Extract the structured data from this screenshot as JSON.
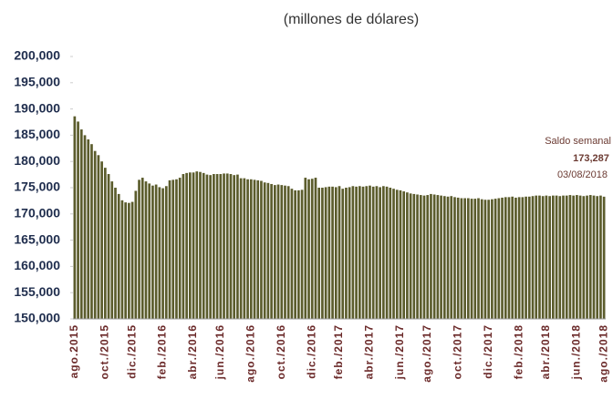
{
  "chart_data": {
    "type": "bar",
    "title": "(millones de dólares)",
    "color": "#5b5c2c",
    "categories": [
      "ago.2015",
      null,
      null,
      null,
      null,
      null,
      null,
      null,
      null,
      "oct./2015",
      null,
      null,
      null,
      null,
      null,
      null,
      null,
      "dic./2015",
      null,
      null,
      null,
      null,
      null,
      null,
      null,
      null,
      "feb./2016",
      null,
      null,
      null,
      null,
      null,
      null,
      null,
      null,
      "abr./2016",
      null,
      null,
      null,
      null,
      null,
      null,
      null,
      "jun./2016",
      null,
      null,
      null,
      null,
      null,
      null,
      null,
      null,
      "ago./2016",
      null,
      null,
      null,
      null,
      null,
      null,
      null,
      null,
      "oct./2016",
      null,
      null,
      null,
      null,
      null,
      null,
      null,
      null,
      "dic./2016",
      null,
      null,
      null,
      null,
      null,
      null,
      null,
      "feb./2017",
      null,
      null,
      null,
      null,
      null,
      null,
      null,
      null,
      "abr./2017",
      null,
      null,
      null,
      null,
      null,
      null,
      null,
      null,
      "jun./2017",
      null,
      null,
      null,
      null,
      null,
      null,
      null,
      "ago./2017",
      null,
      null,
      null,
      null,
      null,
      null,
      null,
      null,
      "oct./2017",
      null,
      null,
      null,
      null,
      null,
      null,
      null,
      null,
      "dic./2017",
      null,
      null,
      null,
      null,
      null,
      null,
      null,
      null,
      "feb./2018",
      null,
      null,
      null,
      null,
      null,
      null,
      null,
      "abr./2018",
      null,
      null,
      null,
      null,
      null,
      null,
      null,
      null,
      "jun./2018",
      null,
      null,
      null,
      null,
      null,
      null,
      null,
      "ago./2018"
    ],
    "values": [
      188600,
      187600,
      186100,
      185000,
      184200,
      183300,
      182000,
      181200,
      180000,
      178800,
      177600,
      176200,
      175000,
      173800,
      172600,
      172200,
      172100,
      172300,
      174400,
      176500,
      176900,
      176200,
      175800,
      175400,
      175600,
      175100,
      174900,
      175300,
      176400,
      176500,
      176600,
      176900,
      177600,
      177800,
      177900,
      177900,
      178100,
      178000,
      177800,
      177500,
      177400,
      177600,
      177600,
      177600,
      177700,
      177700,
      177600,
      177400,
      177500,
      176800,
      176800,
      176600,
      176600,
      176500,
      176400,
      176300,
      176000,
      175900,
      175700,
      175500,
      175600,
      175500,
      175400,
      175300,
      174800,
      174500,
      174500,
      174600,
      176900,
      176600,
      176700,
      176900,
      175000,
      175000,
      175100,
      175200,
      175200,
      175100,
      175300,
      174800,
      175000,
      175100,
      175300,
      175200,
      175300,
      175200,
      175300,
      175400,
      175200,
      175300,
      175100,
      175300,
      175200,
      175000,
      174800,
      174600,
      174500,
      174300,
      174100,
      173900,
      173800,
      173700,
      173600,
      173500,
      173600,
      173800,
      173700,
      173600,
      173500,
      173400,
      173300,
      173400,
      173200,
      173100,
      173000,
      173000,
      173000,
      172900,
      172900,
      173000,
      172800,
      172700,
      172700,
      172800,
      172900,
      173000,
      173100,
      173200,
      173200,
      173300,
      173100,
      173200,
      173200,
      173300,
      173300,
      173400,
      173500,
      173500,
      173400,
      173500,
      173400,
      173500,
      173500,
      173400,
      173500,
      173500,
      173600,
      173500,
      173600,
      173500,
      173400,
      173500,
      173600,
      173500,
      173400,
      173500,
      173287
    ],
    "ylim": [
      150000,
      200000
    ],
    "yticks": [
      {
        "value": 150000,
        "label": "150,000"
      },
      {
        "value": 155000,
        "label": "155,000"
      },
      {
        "value": 160000,
        "label": "160,000"
      },
      {
        "value": 165000,
        "label": "165,000"
      },
      {
        "value": 170000,
        "label": "170,000"
      },
      {
        "value": 175000,
        "label": "175,000"
      },
      {
        "value": 180000,
        "label": "180,000"
      },
      {
        "value": 185000,
        "label": "185,000"
      },
      {
        "value": 190000,
        "label": "190,000"
      },
      {
        "value": 195000,
        "label": "195,000"
      },
      {
        "value": 200000,
        "label": "200,000"
      }
    ],
    "grid": false,
    "annotation": {
      "title": "Saldo semanal",
      "value_label": "173,287",
      "date": "03/08/2018"
    }
  }
}
